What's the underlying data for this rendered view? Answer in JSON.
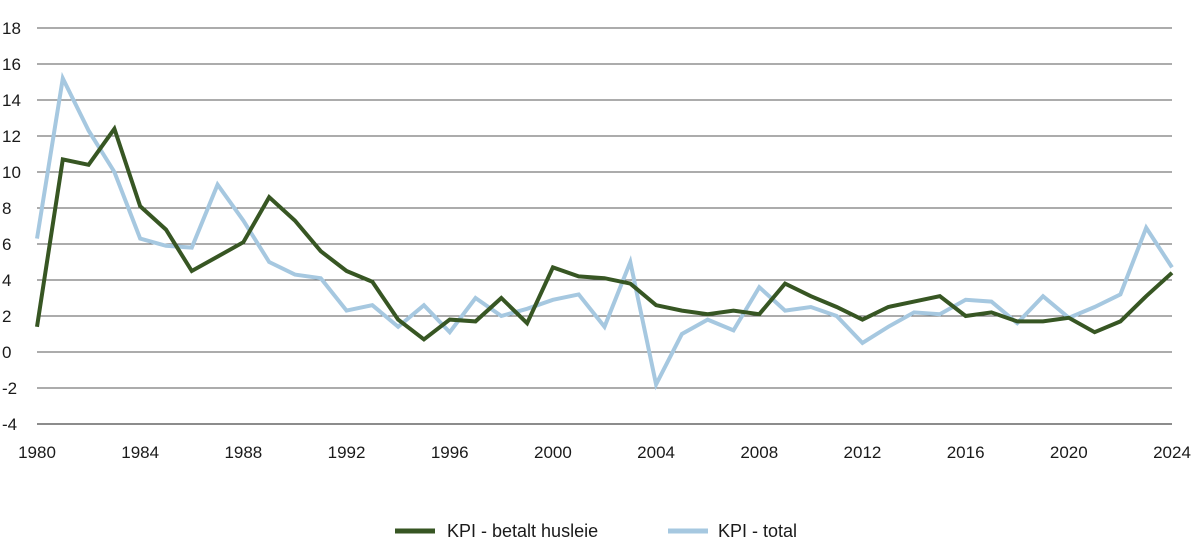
{
  "chart_data": {
    "type": "line",
    "x": [
      1980,
      1981,
      1982,
      1983,
      1984,
      1985,
      1986,
      1987,
      1988,
      1989,
      1990,
      1991,
      1992,
      1993,
      1994,
      1995,
      1996,
      1997,
      1998,
      1999,
      2000,
      2001,
      2002,
      2003,
      2004,
      2005,
      2006,
      2007,
      2008,
      2009,
      2010,
      2011,
      2012,
      2013,
      2014,
      2015,
      2016,
      2017,
      2018,
      2019,
      2020,
      2021,
      2022,
      2023,
      2024
    ],
    "x_tick_labels": [
      "1980",
      "1984",
      "1988",
      "1992",
      "1996",
      "2000",
      "2004",
      "2008",
      "2012",
      "2016",
      "2020",
      "2024"
    ],
    "y_tick_labels": [
      "-4",
      "-2",
      "0",
      "2",
      "4",
      "6",
      "8",
      "10",
      "12",
      "14",
      "16",
      "18"
    ],
    "ylim": [
      -4,
      18
    ],
    "xlim": [
      1980,
      2024
    ],
    "grid": true,
    "legend_position": "bottom",
    "series": [
      {
        "name": "KPI - betalt husleie",
        "color": "#375623",
        "values": [
          1.4,
          10.7,
          10.4,
          12.4,
          8.1,
          6.8,
          4.5,
          5.3,
          6.1,
          8.6,
          7.3,
          5.6,
          4.5,
          3.9,
          1.8,
          0.7,
          1.8,
          1.7,
          3.0,
          1.6,
          4.7,
          4.2,
          4.1,
          3.8,
          2.6,
          2.3,
          2.1,
          2.3,
          2.1,
          3.8,
          3.1,
          2.5,
          1.8,
          2.5,
          2.8,
          3.1,
          2.0,
          2.2,
          1.7,
          1.7,
          1.9,
          1.1,
          1.7,
          3.1,
          4.4
        ]
      },
      {
        "name": "KPI - total",
        "color": "#a6c8e0",
        "values": [
          6.3,
          15.2,
          12.3,
          10.0,
          6.3,
          5.9,
          5.8,
          9.3,
          7.3,
          5.0,
          4.3,
          4.1,
          2.3,
          2.6,
          1.4,
          2.6,
          1.1,
          3.0,
          2.0,
          2.4,
          2.9,
          3.2,
          1.4,
          5.0,
          -1.8,
          1.0,
          1.8,
          1.2,
          3.6,
          2.3,
          2.5,
          2.0,
          0.5,
          1.4,
          2.2,
          2.1,
          2.9,
          2.8,
          1.6,
          3.1,
          1.9,
          2.5,
          3.2,
          6.9,
          4.7
        ]
      }
    ]
  }
}
